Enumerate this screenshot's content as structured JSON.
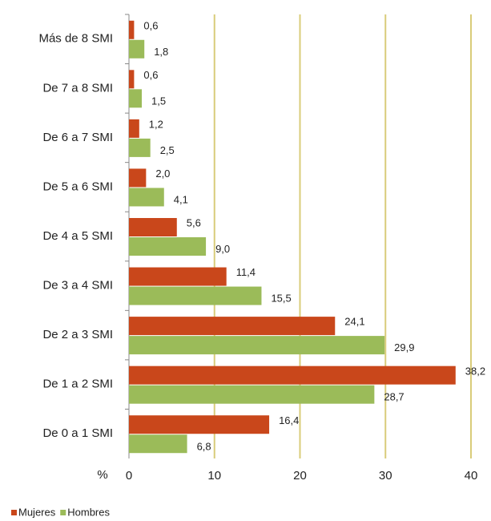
{
  "chart_data": {
    "type": "hbar",
    "x_label": "%",
    "categories": [
      "Más de 8 SMI",
      "De 7 a 8 SMI",
      "De 6 a 7 SMI",
      "De 5 a 6 SMI",
      "De 4 a 5 SMI",
      "De 3 a 4 SMI",
      "De 2 a 3 SMI",
      "De 1 a 2 SMI",
      "De 0 a 1 SMI"
    ],
    "series": [
      {
        "name": "Mujeres",
        "color": "#c9471b",
        "values": [
          0.6,
          0.6,
          1.2,
          2.0,
          5.6,
          11.4,
          24.1,
          38.2,
          16.4
        ],
        "value_labels": [
          "0,6",
          "0,6",
          "1,2",
          "2,0",
          "5,6",
          "11,4",
          "24,1",
          "38,2",
          "16,4"
        ]
      },
      {
        "name": "Hombres",
        "color": "#9bbb59",
        "values": [
          1.8,
          1.5,
          2.5,
          4.1,
          9.0,
          15.5,
          29.9,
          28.7,
          6.8
        ],
        "value_labels": [
          "1,8",
          "1,5",
          "2,5",
          "4,1",
          "9,0",
          "15,5",
          "29,9",
          "28,7",
          "6,8"
        ]
      }
    ],
    "xlim": [
      0,
      40
    ],
    "xticks": [
      0,
      10,
      20,
      30,
      40
    ],
    "grid": true,
    "grid_color": "#d9cc7a",
    "legend": "bottom-left"
  }
}
